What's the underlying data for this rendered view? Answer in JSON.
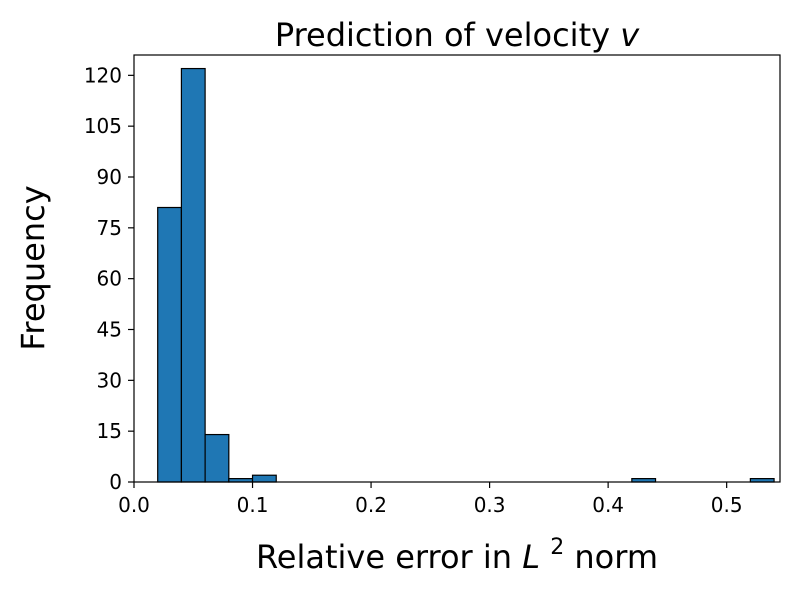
{
  "chart_data": {
    "type": "bar",
    "title": "Prediction of velocity",
    "title_variable": "v",
    "xlabel": "Relative error in",
    "xlabel_math": "L",
    "xlabel_superscript": "2",
    "xlabel_suffix": "norm",
    "ylabel": "Frequency",
    "xlim": [
      0.0,
      0.545
    ],
    "ylim": [
      0,
      126
    ],
    "xticks": [
      0.0,
      0.1,
      0.2,
      0.3,
      0.4,
      0.5
    ],
    "xtick_labels": [
      "0.0",
      "0.1",
      "0.2",
      "0.3",
      "0.4",
      "0.5"
    ],
    "yticks": [
      0,
      15,
      30,
      45,
      60,
      75,
      90,
      105,
      120
    ],
    "ytick_labels": [
      "0",
      "15",
      "30",
      "45",
      "60",
      "75",
      "90",
      "105",
      "120"
    ],
    "bin_edges": [
      0.02,
      0.04,
      0.06,
      0.08,
      0.1,
      0.12,
      0.14,
      0.16,
      0.18,
      0.2,
      0.22,
      0.24,
      0.26,
      0.28,
      0.3,
      0.32,
      0.34,
      0.36,
      0.38,
      0.4,
      0.42,
      0.44,
      0.46,
      0.48,
      0.5,
      0.52,
      0.54
    ],
    "values": [
      81,
      122,
      14,
      1,
      2,
      0,
      0,
      0,
      0,
      0,
      0,
      0,
      0,
      0,
      0,
      0,
      0,
      0,
      0,
      0,
      1,
      0,
      0,
      0,
      0,
      1
    ],
    "bar_color": "#1f77b4",
    "grid": false,
    "legend": "none"
  }
}
